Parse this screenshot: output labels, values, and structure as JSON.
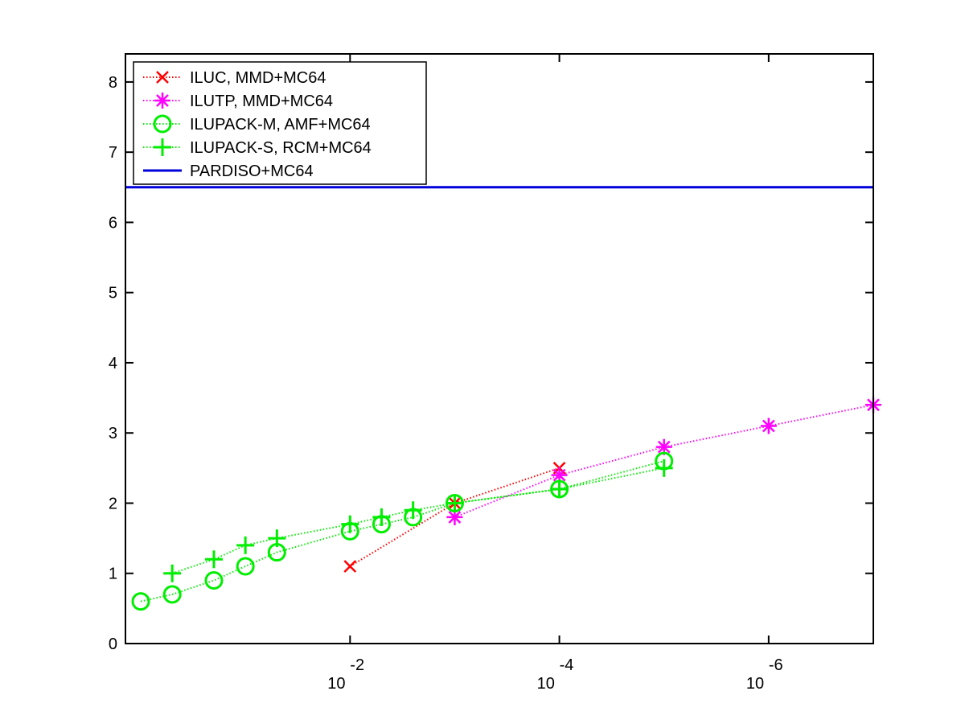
{
  "chart_data": {
    "type": "line",
    "title": "",
    "xlabel": "",
    "ylabel": "",
    "x_scale": "log",
    "x_reversed": true,
    "xlim": [
      1.4,
      1e-07
    ],
    "ylim": [
      0,
      8.4
    ],
    "grid": false,
    "legend_position": "top-left",
    "x_ticks": [
      {
        "value": 0.01,
        "base": "10",
        "exponent": "-2"
      },
      {
        "value": 0.0001,
        "base": "10",
        "exponent": "-4"
      },
      {
        "value": 1e-06,
        "base": "10",
        "exponent": "-6"
      }
    ],
    "y_ticks": [
      "0",
      "1",
      "2",
      "3",
      "4",
      "5",
      "6",
      "7",
      "8"
    ],
    "series": [
      {
        "name": "ILUC, MMD+MC64",
        "color": "#ff0000",
        "marker": "x",
        "line_style": "dotted",
        "x": [
          0.01,
          0.001,
          0.0001
        ],
        "y": [
          1.1,
          2.0,
          2.5
        ]
      },
      {
        "name": "ILUTP, MMD+MC64",
        "color": "#ff00ff",
        "marker": "asterisk",
        "line_style": "dotted",
        "x": [
          0.001,
          0.0001,
          1e-05,
          1e-06,
          1e-07
        ],
        "y": [
          1.8,
          2.4,
          2.8,
          3.1,
          3.4
        ]
      },
      {
        "name": "ILUPACK-M, AMF+MC64",
        "color": "#00ee00",
        "marker": "circle",
        "line_style": "dotted",
        "x": [
          1.0,
          0.5,
          0.2,
          0.1,
          0.05,
          0.01,
          0.005,
          0.0025,
          0.001,
          0.0001,
          1e-05
        ],
        "y": [
          0.6,
          0.7,
          0.9,
          1.1,
          1.3,
          1.6,
          1.7,
          1.8,
          2.0,
          2.2,
          2.6
        ]
      },
      {
        "name": "ILUPACK-S, RCM+MC64",
        "color": "#00ee00",
        "marker": "plus",
        "line_style": "dotted",
        "x": [
          0.5,
          0.2,
          0.1,
          0.05,
          0.01,
          0.005,
          0.0025,
          0.001,
          0.0001,
          1e-05
        ],
        "y": [
          1.0,
          1.2,
          1.4,
          1.5,
          1.7,
          1.8,
          1.9,
          2.0,
          2.2,
          2.5
        ]
      },
      {
        "name": "PARDISO+MC64",
        "color": "#0000dd",
        "marker": "none",
        "line_style": "solid",
        "x": [
          1.4,
          1e-07
        ],
        "y": [
          6.5,
          6.5
        ]
      }
    ]
  }
}
